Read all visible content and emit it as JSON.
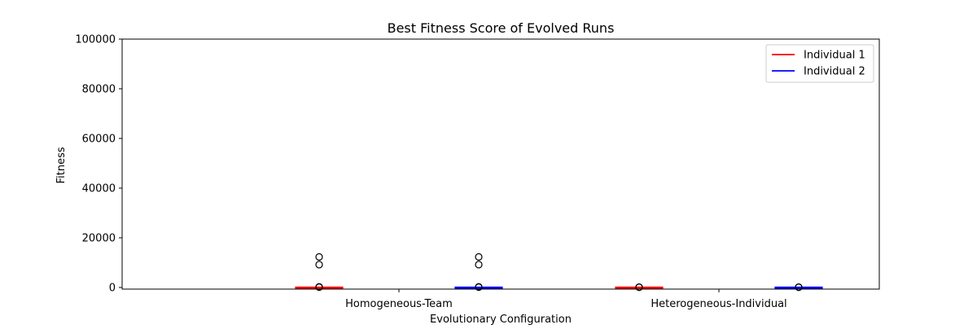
{
  "chart_data": {
    "type": "box",
    "title": "Best Fitness Score of Evolved Runs",
    "xlabel": "Evolutionary Configuration",
    "ylabel": "Fitness",
    "ylim": [
      0,
      100000
    ],
    "yticks": [
      0,
      20000,
      40000,
      60000,
      80000,
      100000
    ],
    "grid": false,
    "legend_position": "top-right",
    "categories": [
      "Homogeneous-Team",
      "Heterogeneous-Individual"
    ],
    "series": [
      {
        "name": "Individual 1",
        "color": "#ff0000",
        "boxes": [
          {
            "category": "Homogeneous-Team",
            "whislo": 0,
            "q1": 0,
            "median": 0,
            "q3": 0,
            "whishi": 0,
            "fliers": [
              12300,
              9200,
              250,
              120
            ]
          },
          {
            "category": "Heterogeneous-Individual",
            "whislo": 0,
            "q1": 0,
            "median": 0,
            "q3": 0,
            "whishi": 0,
            "fliers": [
              150,
              80
            ]
          }
        ]
      },
      {
        "name": "Individual 2",
        "color": "#0000ff",
        "boxes": [
          {
            "category": "Homogeneous-Team",
            "whislo": 0,
            "q1": 0,
            "median": 0,
            "q3": 0,
            "whishi": 0,
            "fliers": [
              12300,
              9200,
              250,
              120
            ]
          },
          {
            "category": "Heterogeneous-Individual",
            "whislo": 0,
            "q1": 0,
            "median": 0,
            "q3": 0,
            "whishi": 0,
            "fliers": [
              150,
              80
            ]
          }
        ]
      }
    ]
  }
}
